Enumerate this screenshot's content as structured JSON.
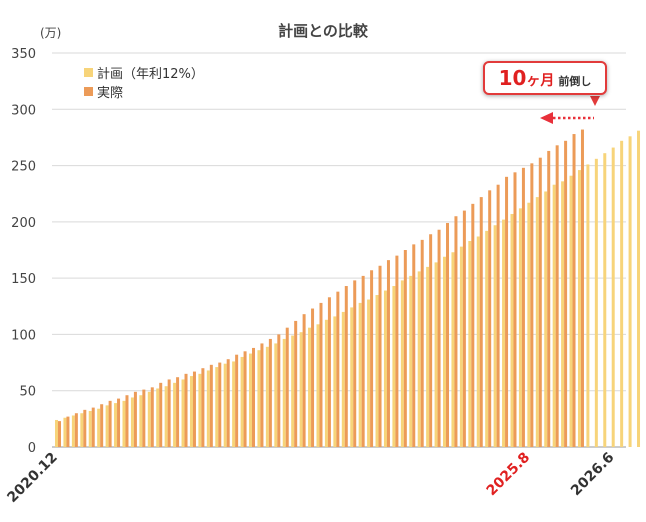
{
  "chart_data": {
    "type": "bar",
    "title": "計画との比較",
    "unit": "(万)",
    "ylim": [
      0,
      350
    ],
    "yticks": [
      "0",
      "50",
      "100",
      "150",
      "200",
      "250",
      "300",
      "350"
    ],
    "grid": true,
    "legend_position": "top-left",
    "x_labels": [
      {
        "label": "2020.12",
        "index": 0,
        "color": "#333333"
      },
      {
        "label": "2025.8",
        "index": 56,
        "color": "#e02020"
      },
      {
        "label": "2026.6",
        "index": 66,
        "color": "#333333"
      }
    ],
    "series": [
      {
        "name": "計画（年利12%）",
        "color": "#f7d47a",
        "values": [
          24.0,
          26.0,
          28.0,
          30.0,
          32.0,
          34.0,
          37.0,
          39.0,
          41.0,
          44.0,
          46.0,
          49.0,
          52.0,
          54.0,
          57.0,
          60.0,
          63.0,
          65.0,
          68.0,
          71.0,
          74.0,
          76.0,
          80.0,
          83.0,
          86.0,
          89.0,
          92.0,
          96.0,
          99.0,
          102.0,
          106.0,
          109.0,
          113.0,
          116.0,
          120.0,
          124.0,
          128.0,
          131.0,
          135.0,
          139.0,
          143.0,
          148.0,
          152.0,
          156.0,
          160.0,
          164.0,
          169.0,
          173.0,
          178.0,
          183.0,
          187.0,
          192.0,
          197.0,
          202.0,
          207.0,
          212.0,
          217.0,
          222.0,
          227.0,
          233.0,
          236.0,
          241.0,
          246.0,
          251.0,
          256.0,
          261.0,
          266.0,
          272.0,
          276.0,
          281.0
        ]
      },
      {
        "name": "実際",
        "color": "#ec9b58",
        "values": [
          23.0,
          27.0,
          30.0,
          33.0,
          35.0,
          38.0,
          41.0,
          43.0,
          46.0,
          49.0,
          51.0,
          53.0,
          57.0,
          60.0,
          62.0,
          65.0,
          67.0,
          70.0,
          73.0,
          75.0,
          78.0,
          82.0,
          85.0,
          88.0,
          92.0,
          96.0,
          100.0,
          106.0,
          112.0,
          118.0,
          123.0,
          128.0,
          133.0,
          138.0,
          143.0,
          148.0,
          152.0,
          157.0,
          161.0,
          166.0,
          170.0,
          175.0,
          180.0,
          184.0,
          189.0,
          193.0,
          199.0,
          205.0,
          210.0,
          216.0,
          222.0,
          228.0,
          233.0,
          240.0,
          244.0,
          248.0,
          252.0,
          257.0,
          263.0,
          268.0,
          272.0,
          278.0,
          282.0
        ]
      }
    ],
    "annotation": {
      "big": "10",
      "mid": "ヶ月",
      "small": "前倒し",
      "arrow_color": "#e8303a"
    }
  }
}
